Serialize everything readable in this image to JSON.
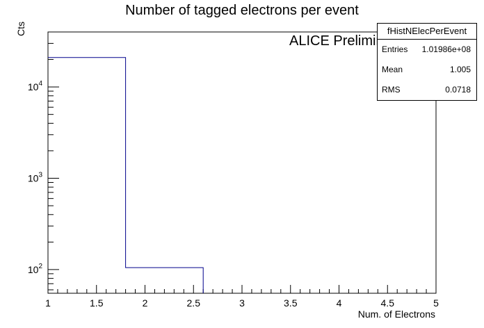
{
  "chart_data": {
    "type": "bar",
    "title": "Number of tagged electrons per event",
    "xlabel": "Num. of Electrons",
    "ylabel": "Cts",
    "xlim": [
      1,
      5
    ],
    "ylim": [
      55,
      40000
    ],
    "y_scale": "log",
    "bins": [
      {
        "low": 1.0,
        "high": 1.8,
        "value": 21000
      },
      {
        "low": 1.8,
        "high": 2.6,
        "value": 105
      }
    ],
    "x_ticks": [
      "1",
      "1.5",
      "2",
      "2.5",
      "3",
      "3.5",
      "4",
      "4.5",
      "5"
    ],
    "y_ticks": [
      {
        "base": "10",
        "exp": "2"
      },
      {
        "base": "10",
        "exp": "3"
      },
      {
        "base": "10",
        "exp": "4"
      }
    ],
    "line_color": "#00008b",
    "grid": false
  },
  "annotation": "ALICE Preliminary",
  "stats": {
    "name": "fHistNElecPerEvent",
    "rows": [
      {
        "key": "Entries",
        "value": "1.01986e+08"
      },
      {
        "key": "Mean",
        "value": "1.005"
      },
      {
        "key": "RMS",
        "value": "0.0718"
      }
    ]
  }
}
